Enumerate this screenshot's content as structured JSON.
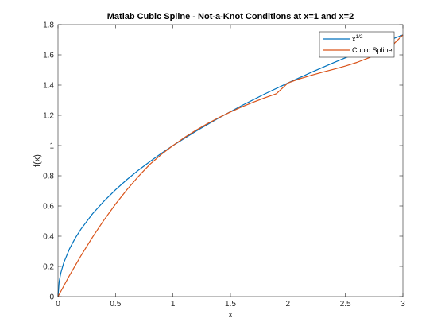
{
  "chart_data": {
    "type": "line",
    "title": "Matlab Cubic Spline - Not-a-Knot Conditions at x=1 and x=2",
    "xlabel": "x",
    "ylabel": "f(x)",
    "xlim": [
      0,
      3
    ],
    "ylim": [
      0,
      1.8
    ],
    "xticks": [
      0,
      0.5,
      1,
      1.5,
      2,
      2.5,
      3
    ],
    "xtick_labels": [
      "0",
      "0.5",
      "1",
      "1.5",
      "2",
      "2.5",
      "3"
    ],
    "yticks": [
      0,
      0.2,
      0.4,
      0.6,
      0.8,
      1,
      1.2,
      1.4,
      1.6,
      1.8
    ],
    "ytick_labels": [
      "0",
      "0.2",
      "0.4",
      "0.6",
      "0.8",
      "1",
      "1.2",
      "1.4",
      "1.6",
      "1.8"
    ],
    "grid": false,
    "legend_position": "top-right",
    "series": [
      {
        "name": "x",
        "name_superscript": "1/2",
        "color": "#0072BD",
        "x": [
          0,
          0.01,
          0.025,
          0.05,
          0.1,
          0.15,
          0.2,
          0.3,
          0.4,
          0.5,
          0.6,
          0.7,
          0.8,
          0.9,
          1.0,
          1.2,
          1.4,
          1.6,
          1.8,
          2.0,
          2.2,
          2.4,
          2.6,
          2.8,
          3.0
        ],
        "y": [
          0,
          0.1,
          0.158,
          0.224,
          0.316,
          0.387,
          0.447,
          0.548,
          0.632,
          0.707,
          0.775,
          0.837,
          0.894,
          0.949,
          1.0,
          1.095,
          1.183,
          1.265,
          1.342,
          1.414,
          1.483,
          1.549,
          1.612,
          1.673,
          1.732
        ]
      },
      {
        "name": "Cubic Spline",
        "color": "#D95319",
        "x": [
          0,
          0.1,
          0.2,
          0.3,
          0.4,
          0.5,
          0.6,
          0.7,
          0.8,
          0.9,
          1.0,
          1.1,
          1.2,
          1.3,
          1.4,
          1.5,
          1.6,
          1.7,
          1.8,
          1.9,
          2.0,
          2.1,
          2.2,
          2.3,
          2.4,
          2.5,
          2.6,
          2.7,
          2.8,
          2.9,
          3.0
        ],
        "y": [
          0,
          0.14,
          0.271,
          0.393,
          0.507,
          0.612,
          0.708,
          0.796,
          0.876,
          0.942,
          1.0,
          1.053,
          1.101,
          1.145,
          1.185,
          1.222,
          1.256,
          1.287,
          1.316,
          1.343,
          1.414,
          1.441,
          1.464,
          1.485,
          1.505,
          1.526,
          1.55,
          1.579,
          1.614,
          1.657,
          1.732
        ]
      }
    ]
  }
}
